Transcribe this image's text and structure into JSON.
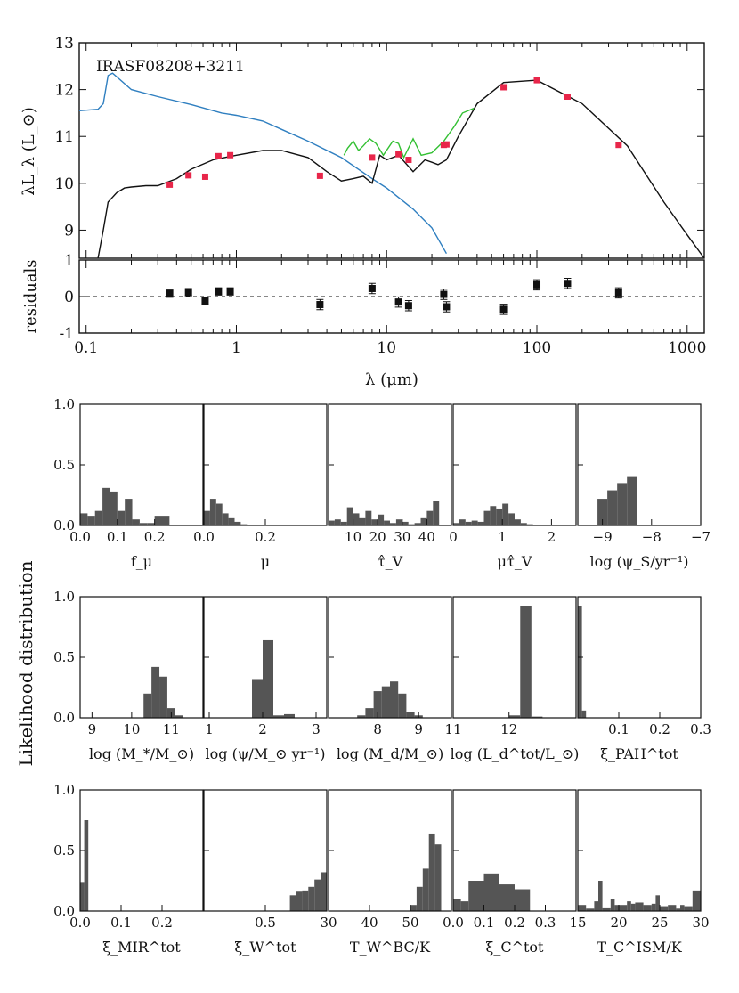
{
  "figure": {
    "object_label": "IRASF08208+3211",
    "shared_ylabel": "Likelihood distribution"
  },
  "chart_data": [
    {
      "type": "line",
      "panel": "sed",
      "xlabel": "λ (μm)",
      "ylabel": "λL_λ (L_⊙)",
      "xscale": "log",
      "xlim": [
        0.09,
        1300
      ],
      "ylim": [
        8.4,
        13
      ],
      "xticks": [
        "0.1",
        "1",
        "10",
        "100",
        "1000"
      ],
      "yticks": [
        "9",
        "10",
        "11",
        "12",
        "13"
      ],
      "series": [
        {
          "kind": "unattenuated",
          "color": "#2f7fc0",
          "x": [
            0.09,
            0.12,
            0.13,
            0.14,
            0.15,
            0.2,
            0.3,
            0.5,
            0.8,
            1.0,
            1.5,
            2,
            3,
            5,
            8,
            10,
            15,
            20,
            25
          ],
          "y": [
            11.55,
            11.58,
            11.7,
            12.3,
            12.35,
            12.0,
            11.85,
            11.68,
            11.5,
            11.45,
            11.33,
            11.15,
            10.9,
            10.55,
            10.1,
            9.9,
            9.45,
            9.05,
            8.5
          ]
        },
        {
          "kind": "attenuated",
          "color": "#111111",
          "x": [
            0.12,
            0.13,
            0.14,
            0.16,
            0.18,
            0.2,
            0.25,
            0.3,
            0.4,
            0.5,
            0.7,
            1.0,
            1.5,
            2,
            3,
            4,
            5,
            6,
            7,
            8,
            9,
            10,
            12,
            15,
            18,
            20,
            22,
            25,
            30,
            40,
            60,
            100,
            200,
            400,
            700,
            1000,
            1300
          ],
          "y": [
            8.4,
            9.0,
            9.6,
            9.8,
            9.9,
            9.92,
            9.95,
            9.95,
            10.1,
            10.3,
            10.5,
            10.6,
            10.7,
            10.7,
            10.55,
            10.25,
            10.05,
            10.1,
            10.15,
            10.0,
            10.6,
            10.5,
            10.6,
            10.25,
            10.5,
            10.45,
            10.4,
            10.5,
            11.0,
            11.7,
            12.15,
            12.2,
            11.7,
            10.8,
            9.6,
            8.9,
            8.4
          ]
        },
        {
          "kind": "spectrum",
          "color": "#33c033",
          "x": [
            5.2,
            5.5,
            6.0,
            6.5,
            7.0,
            7.7,
            8.5,
            9.5,
            11,
            12,
            13,
            15,
            17,
            20,
            24,
            28,
            32,
            38
          ],
          "y": [
            10.6,
            10.75,
            10.9,
            10.7,
            10.8,
            10.95,
            10.85,
            10.6,
            10.9,
            10.85,
            10.55,
            10.95,
            10.6,
            10.65,
            10.9,
            11.2,
            11.5,
            11.6
          ]
        }
      ],
      "observations": {
        "x": [
          0.36,
          0.48,
          0.62,
          0.76,
          0.91,
          3.6,
          8.0,
          12,
          14,
          24,
          25,
          60,
          100,
          160,
          350
        ],
        "y": [
          9.97,
          10.17,
          10.14,
          10.58,
          10.6,
          10.16,
          10.55,
          10.62,
          10.5,
          10.82,
          10.83,
          12.05,
          12.2,
          11.85,
          10.82
        ]
      }
    },
    {
      "type": "scatter",
      "panel": "residuals",
      "xscale": "log",
      "xlabel": "λ (μm)",
      "ylabel": "residuals",
      "ylim": [
        -1,
        1
      ],
      "yticks": [
        "-1",
        "0",
        "1"
      ],
      "x": [
        0.36,
        0.48,
        0.62,
        0.76,
        0.91,
        3.6,
        8.0,
        12,
        14,
        24,
        25,
        60,
        100,
        160,
        350
      ],
      "y": [
        0.08,
        0.12,
        -0.12,
        0.14,
        0.14,
        -0.22,
        0.22,
        -0.15,
        -0.25,
        0.06,
        -0.28,
        -0.35,
        0.32,
        0.36,
        0.1
      ],
      "err": [
        0.1,
        0.1,
        0.1,
        0.1,
        0.1,
        0.14,
        0.14,
        0.14,
        0.14,
        0.14,
        0.14,
        0.14,
        0.14,
        0.14,
        0.14
      ]
    },
    {
      "type": "bar",
      "panel": "hist",
      "xlabel": "f_μ",
      "xlim": [
        0,
        0.33
      ],
      "xticks": [
        0,
        0.1,
        0.2
      ],
      "tick_labels": [
        "0.0",
        "0.1",
        "0.2"
      ],
      "show_yaxis": true,
      "bin_edges": [
        0,
        0.02,
        0.04,
        0.06,
        0.08,
        0.1,
        0.12,
        0.14,
        0.16,
        0.18,
        0.2,
        0.22,
        0.24,
        0.26
      ],
      "values": [
        0.1,
        0.08,
        0.12,
        0.31,
        0.28,
        0.12,
        0.22,
        0.05,
        0.02,
        0.02,
        0.08,
        0.08,
        0.0
      ]
    },
    {
      "type": "bar",
      "panel": "hist",
      "xlabel": "μ",
      "xlim": [
        0,
        0.4
      ],
      "xticks": [
        0,
        0.2
      ],
      "tick_labels": [
        "0.0",
        "0.2"
      ],
      "bin_edges": [
        0,
        0.02,
        0.04,
        0.06,
        0.08,
        0.1,
        0.12,
        0.14,
        0.16
      ],
      "values": [
        0.12,
        0.22,
        0.18,
        0.1,
        0.06,
        0.03,
        0.01,
        0.0
      ]
    },
    {
      "type": "bar",
      "panel": "hist",
      "xlabel": "τ̂_V",
      "xlim": [
        0,
        50
      ],
      "xticks": [
        10,
        20,
        30,
        40
      ],
      "tick_labels": [
        "10",
        "20",
        "30",
        "40"
      ],
      "bin_edges": [
        0,
        2.5,
        5,
        7.5,
        10,
        12.5,
        15,
        17.5,
        20,
        22.5,
        25,
        27.5,
        30,
        32.5,
        35,
        37.5,
        40,
        42.5,
        45
      ],
      "values": [
        0.04,
        0.05,
        0.03,
        0.15,
        0.1,
        0.06,
        0.12,
        0.05,
        0.09,
        0.04,
        0.02,
        0.05,
        0.03,
        0.01,
        0.02,
        0.06,
        0.12,
        0.2
      ]
    },
    {
      "type": "bar",
      "panel": "hist",
      "xlabel": "μτ̂_V",
      "xlim": [
        0,
        2.5
      ],
      "xticks": [
        0,
        1,
        2
      ],
      "tick_labels": [
        "0",
        "1",
        "2"
      ],
      "bin_edges": [
        0,
        0.125,
        0.25,
        0.375,
        0.5,
        0.625,
        0.75,
        0.875,
        1.0,
        1.125,
        1.25,
        1.375,
        1.5,
        1.625
      ],
      "values": [
        0.02,
        0.05,
        0.03,
        0.04,
        0.03,
        0.12,
        0.16,
        0.14,
        0.18,
        0.1,
        0.05,
        0.02,
        0.01
      ]
    },
    {
      "type": "bar",
      "panel": "hist",
      "xlabel": "log (ψ_S/yr⁻¹)",
      "xlim": [
        -9.5,
        -7
      ],
      "xticks": [
        -9,
        -8,
        -7
      ],
      "tick_labels": [
        "−9",
        "−8",
        "−7"
      ],
      "bin_edges": [
        -9.1,
        -8.9,
        -8.7,
        -8.5,
        -8.3
      ],
      "values": [
        0.22,
        0.29,
        0.35,
        0.4
      ]
    },
    {
      "type": "bar",
      "panel": "hist",
      "xlabel": "log (M_*/M_⊙)",
      "xlim": [
        8.7,
        11.8
      ],
      "xticks": [
        9,
        10,
        11
      ],
      "tick_labels": [
        "9",
        "10",
        "11"
      ],
      "show_yaxis": true,
      "bin_edges": [
        10.3,
        10.5,
        10.7,
        10.9,
        11.1,
        11.3
      ],
      "values": [
        0.2,
        0.42,
        0.34,
        0.08,
        0.02
      ]
    },
    {
      "type": "bar",
      "panel": "hist",
      "xlabel": "log (ψ/M_⊙ yr⁻¹)",
      "xlim": [
        0.9,
        3.2
      ],
      "xticks": [
        1,
        2,
        3
      ],
      "tick_labels": [
        "1",
        "2",
        "3"
      ],
      "bin_edges": [
        1.8,
        2.0,
        2.2,
        2.4,
        2.6
      ],
      "values": [
        0.32,
        0.64,
        0.02,
        0.03
      ]
    },
    {
      "type": "bar",
      "panel": "hist",
      "xlabel": "log (M_d/M_⊙)",
      "xlim": [
        6.8,
        9.8
      ],
      "xticks": [
        8,
        9
      ],
      "tick_labels": [
        "8",
        "9"
      ],
      "bin_edges": [
        7.5,
        7.7,
        7.9,
        8.1,
        8.3,
        8.5,
        8.7,
        8.9,
        9.1,
        9.3
      ],
      "values": [
        0.02,
        0.08,
        0.22,
        0.26,
        0.3,
        0.2,
        0.05,
        0.02,
        0.0
      ]
    },
    {
      "type": "bar",
      "panel": "hist",
      "xlabel": "log (L_d^tot/L_⊙)",
      "xlim": [
        11,
        13.2
      ],
      "xticks": [
        11,
        12
      ],
      "tick_labels": [
        "11",
        "12"
      ],
      "bin_edges": [
        12.0,
        12.2,
        12.4,
        12.6
      ],
      "values": [
        0.02,
        0.92,
        0.01
      ]
    },
    {
      "type": "bar",
      "panel": "hist",
      "xlabel": "ξ_PAH^tot",
      "xlim": [
        0,
        0.3
      ],
      "xticks": [
        0.1,
        0.2,
        0.3
      ],
      "tick_labels": [
        "0.1",
        "0.2",
        "0.3"
      ],
      "bin_edges": [
        0,
        0.01,
        0.02,
        0.03
      ],
      "values": [
        0.92,
        0.06,
        0.0
      ]
    },
    {
      "type": "bar",
      "panel": "hist",
      "xlabel": "ξ_MIR^tot",
      "xlim": [
        0,
        0.3
      ],
      "xticks": [
        0,
        0.1,
        0.2
      ],
      "tick_labels": [
        "0.0",
        "0.1",
        "0.2"
      ],
      "show_yaxis": true,
      "bin_edges": [
        0,
        0.01,
        0.02,
        0.03
      ],
      "values": [
        0.24,
        0.75,
        0.0
      ]
    },
    {
      "type": "bar",
      "panel": "hist",
      "xlabel": "ξ_W^tot",
      "xlim": [
        0,
        1
      ],
      "xticks": [
        0.5
      ],
      "tick_labels": [
        "0.5"
      ],
      "bin_edges": [
        0.7,
        0.75,
        0.8,
        0.85,
        0.9,
        0.95,
        1.0
      ],
      "values": [
        0.13,
        0.16,
        0.17,
        0.2,
        0.26,
        0.32
      ]
    },
    {
      "type": "bar",
      "panel": "hist",
      "xlabel": "T_W^BC/K",
      "xlim": [
        30,
        60
      ],
      "xticks": [
        30,
        40,
        50
      ],
      "tick_labels": [
        "30",
        "40",
        "50"
      ],
      "bin_edges": [
        50,
        51.5,
        53,
        54.5,
        56,
        57.5
      ],
      "values": [
        0.05,
        0.2,
        0.35,
        0.64,
        0.55
      ]
    },
    {
      "type": "bar",
      "panel": "hist",
      "xlabel": "ξ_C^tot",
      "xlim": [
        0,
        0.4
      ],
      "xticks": [
        0,
        0.1,
        0.2,
        0.3
      ],
      "tick_labels": [
        "0.0",
        "0.1",
        "0.2",
        "0.3"
      ],
      "bin_edges": [
        0,
        0.025,
        0.05,
        0.1,
        0.15,
        0.2,
        0.25
      ],
      "values": [
        0.1,
        0.08,
        0.25,
        0.31,
        0.22,
        0.18
      ]
    },
    {
      "type": "bar",
      "panel": "hist",
      "xlabel": "T_C^ISM/K",
      "xlim": [
        15,
        30
      ],
      "xticks": [
        15,
        20,
        25,
        30
      ],
      "tick_labels": [
        "15",
        "20",
        "25",
        "30"
      ],
      "bin_edges": [
        15,
        16,
        17,
        17.5,
        18,
        19,
        19.5,
        20,
        21,
        21.5,
        22,
        23,
        24,
        24.5,
        25,
        26,
        27,
        27.5,
        28,
        29,
        30
      ],
      "values": [
        0.05,
        0.02,
        0.08,
        0.25,
        0.03,
        0.1,
        0.05,
        0.05,
        0.08,
        0.06,
        0.07,
        0.05,
        0.06,
        0.13,
        0.04,
        0.05,
        0.02,
        0.05,
        0.04,
        0.17
      ]
    }
  ]
}
